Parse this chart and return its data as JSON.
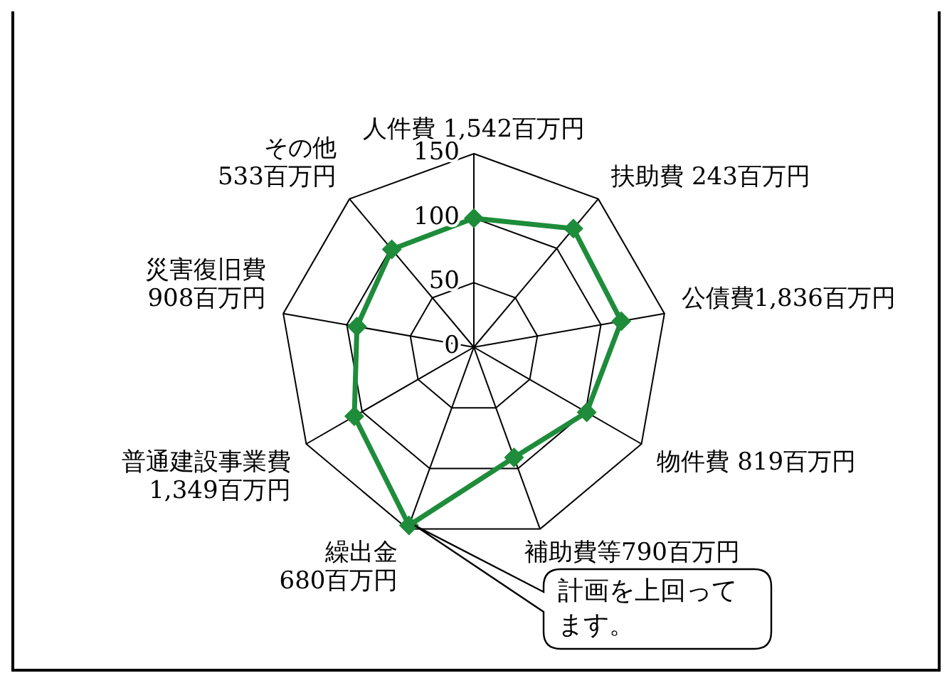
{
  "chart_data": {
    "type": "radar",
    "categories": [
      "人件費 1,542百万円",
      "扶助費 243百万円",
      "公債費1,836百万円",
      "物件費 819百万円",
      "補助費等790百万円",
      "繰出金\n680百万円",
      "普通建設事業費\n1,349百万円",
      "災害復旧費\n908百万円",
      "その他\n533百万円"
    ],
    "series": [
      {
        "color": "#1e8c3a",
        "values": [
          100,
          120,
          116,
          101,
          91,
          147,
          107,
          92,
          99
        ]
      }
    ],
    "ylim": [
      0,
      150
    ],
    "yticks": [
      0,
      50,
      100,
      150
    ],
    "grid": true,
    "legend": false,
    "marker": "diamond",
    "line_style": "solid",
    "annotations": [
      {
        "text": "計画を上回ってます。",
        "x": "繰出金\n680百万円"
      }
    ]
  }
}
